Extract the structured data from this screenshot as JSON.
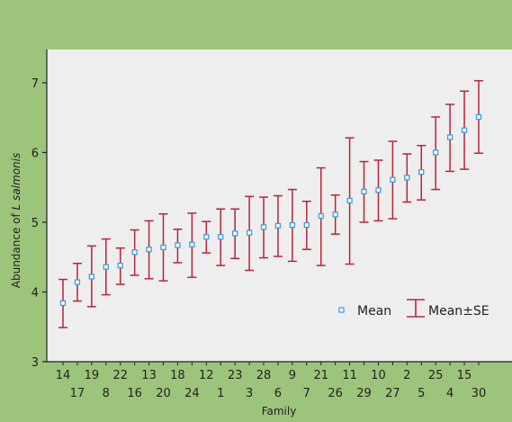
{
  "chart_data": {
    "type": "errorbar",
    "title": "",
    "xlabel": "Family",
    "ylabel_prefix": "Abundance of ",
    "ylabel_species": "L salmonis",
    "ylim": [
      3,
      7.5
    ],
    "yticks": [
      3,
      4,
      5,
      6,
      7
    ],
    "grid": false,
    "legend_placement": "lower-right",
    "colors": {
      "background": "#9cc47a",
      "plot_area": "#eeeeee",
      "error_bar": "#b8243a",
      "mean_marker": "#3aa0d8",
      "axis": "#222222"
    },
    "categories": [
      "14",
      "17",
      "19",
      "8",
      "22",
      "16",
      "13",
      "20",
      "18",
      "24",
      "12",
      "1",
      "23",
      "3",
      "28",
      "6",
      "9",
      "7",
      "21",
      "26",
      "11",
      "29",
      "10",
      "27",
      "2",
      "5",
      "25",
      "4",
      "15",
      "30"
    ],
    "series": [
      {
        "name": "Mean",
        "values": [
          3.84,
          4.14,
          4.22,
          4.36,
          4.38,
          4.57,
          4.61,
          4.64,
          4.67,
          4.68,
          4.79,
          4.79,
          4.84,
          4.85,
          4.93,
          4.95,
          4.96,
          4.96,
          5.09,
          5.11,
          5.31,
          5.44,
          5.46,
          5.61,
          5.64,
          5.72,
          6.0,
          6.22,
          6.32,
          6.51
        ]
      },
      {
        "name": "Mean±SE",
        "lower": [
          3.49,
          3.87,
          3.79,
          3.96,
          4.11,
          4.24,
          4.19,
          4.16,
          4.42,
          4.21,
          4.56,
          4.38,
          4.48,
          4.31,
          4.49,
          4.51,
          4.44,
          4.61,
          4.38,
          4.83,
          4.4,
          5.0,
          5.02,
          5.05,
          5.29,
          5.32,
          5.47,
          5.73,
          5.76,
          5.99
        ],
        "upper": [
          4.18,
          4.41,
          4.66,
          4.76,
          4.63,
          4.89,
          5.02,
          5.12,
          4.9,
          5.13,
          5.01,
          5.19,
          5.19,
          5.37,
          5.36,
          5.38,
          5.47,
          5.3,
          5.78,
          5.39,
          6.21,
          5.87,
          5.89,
          6.16,
          5.98,
          6.1,
          6.51,
          6.69,
          6.88,
          7.03
        ]
      }
    ]
  }
}
